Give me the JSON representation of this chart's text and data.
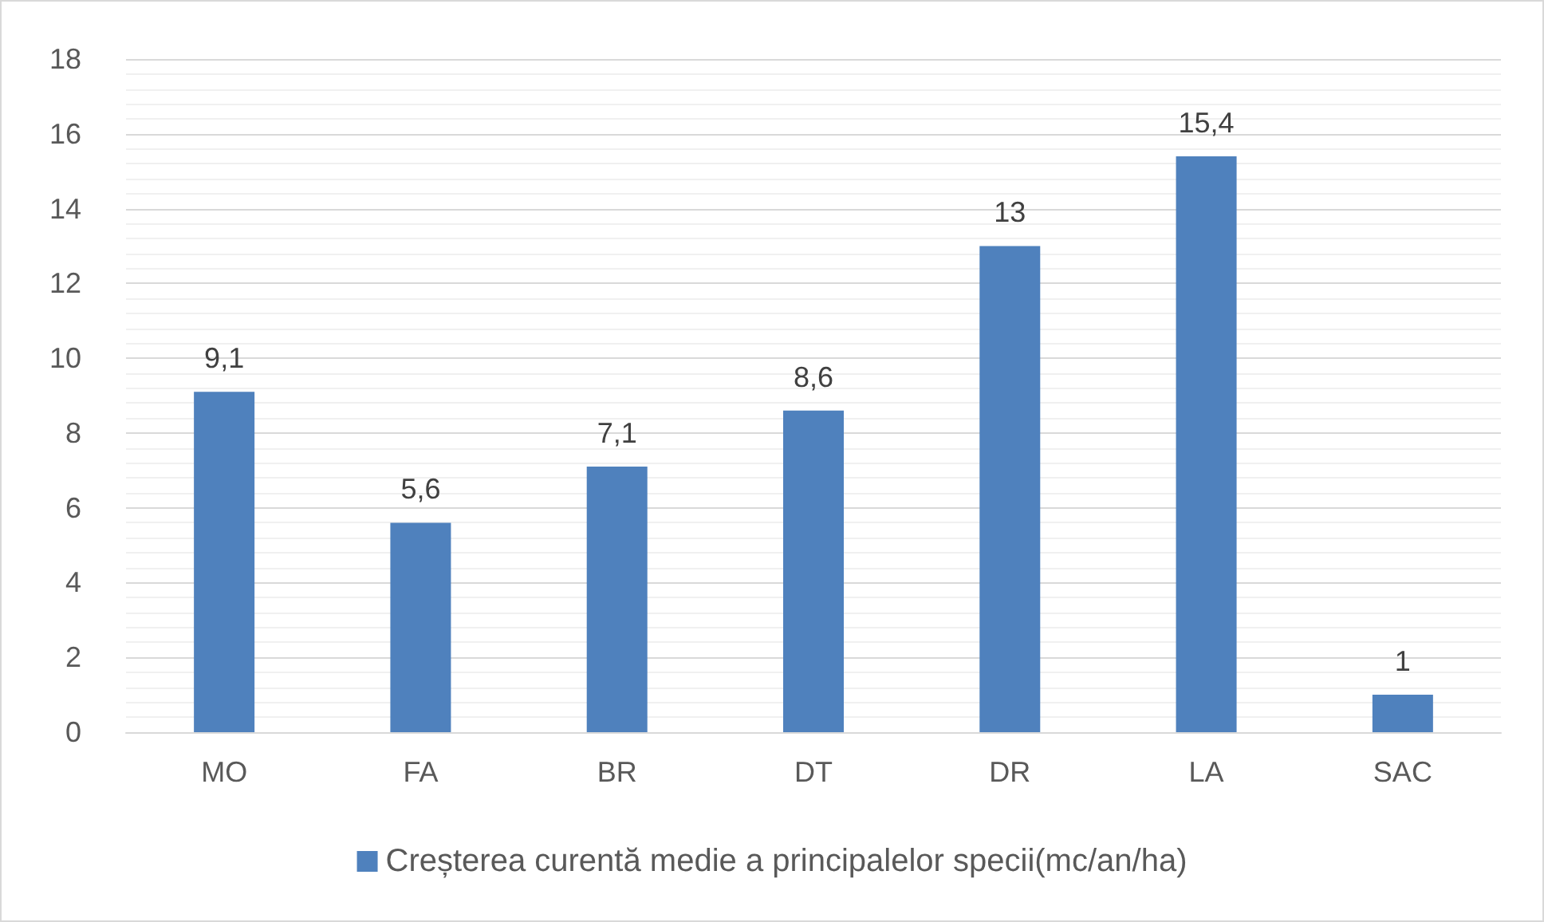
{
  "chart_data": {
    "type": "bar",
    "categories": [
      "MO",
      "FA",
      "BR",
      "DT",
      "DR",
      "LA",
      "SAC"
    ],
    "series": [
      {
        "name": "Creșterea curentă medie a principalelor specii(mc/an/ha)",
        "color": "#4f81bd",
        "values": [
          9.1,
          5.6,
          7.1,
          8.6,
          13,
          15.4,
          1
        ],
        "value_labels": [
          "9,1",
          "5,6",
          "7,1",
          "8,6",
          "13",
          "15,4",
          "1"
        ]
      }
    ],
    "ylim": [
      0,
      18
    ],
    "yticks": [
      0,
      2,
      4,
      6,
      8,
      10,
      12,
      14,
      16,
      18
    ],
    "grid": "y",
    "legend": "bottom"
  }
}
